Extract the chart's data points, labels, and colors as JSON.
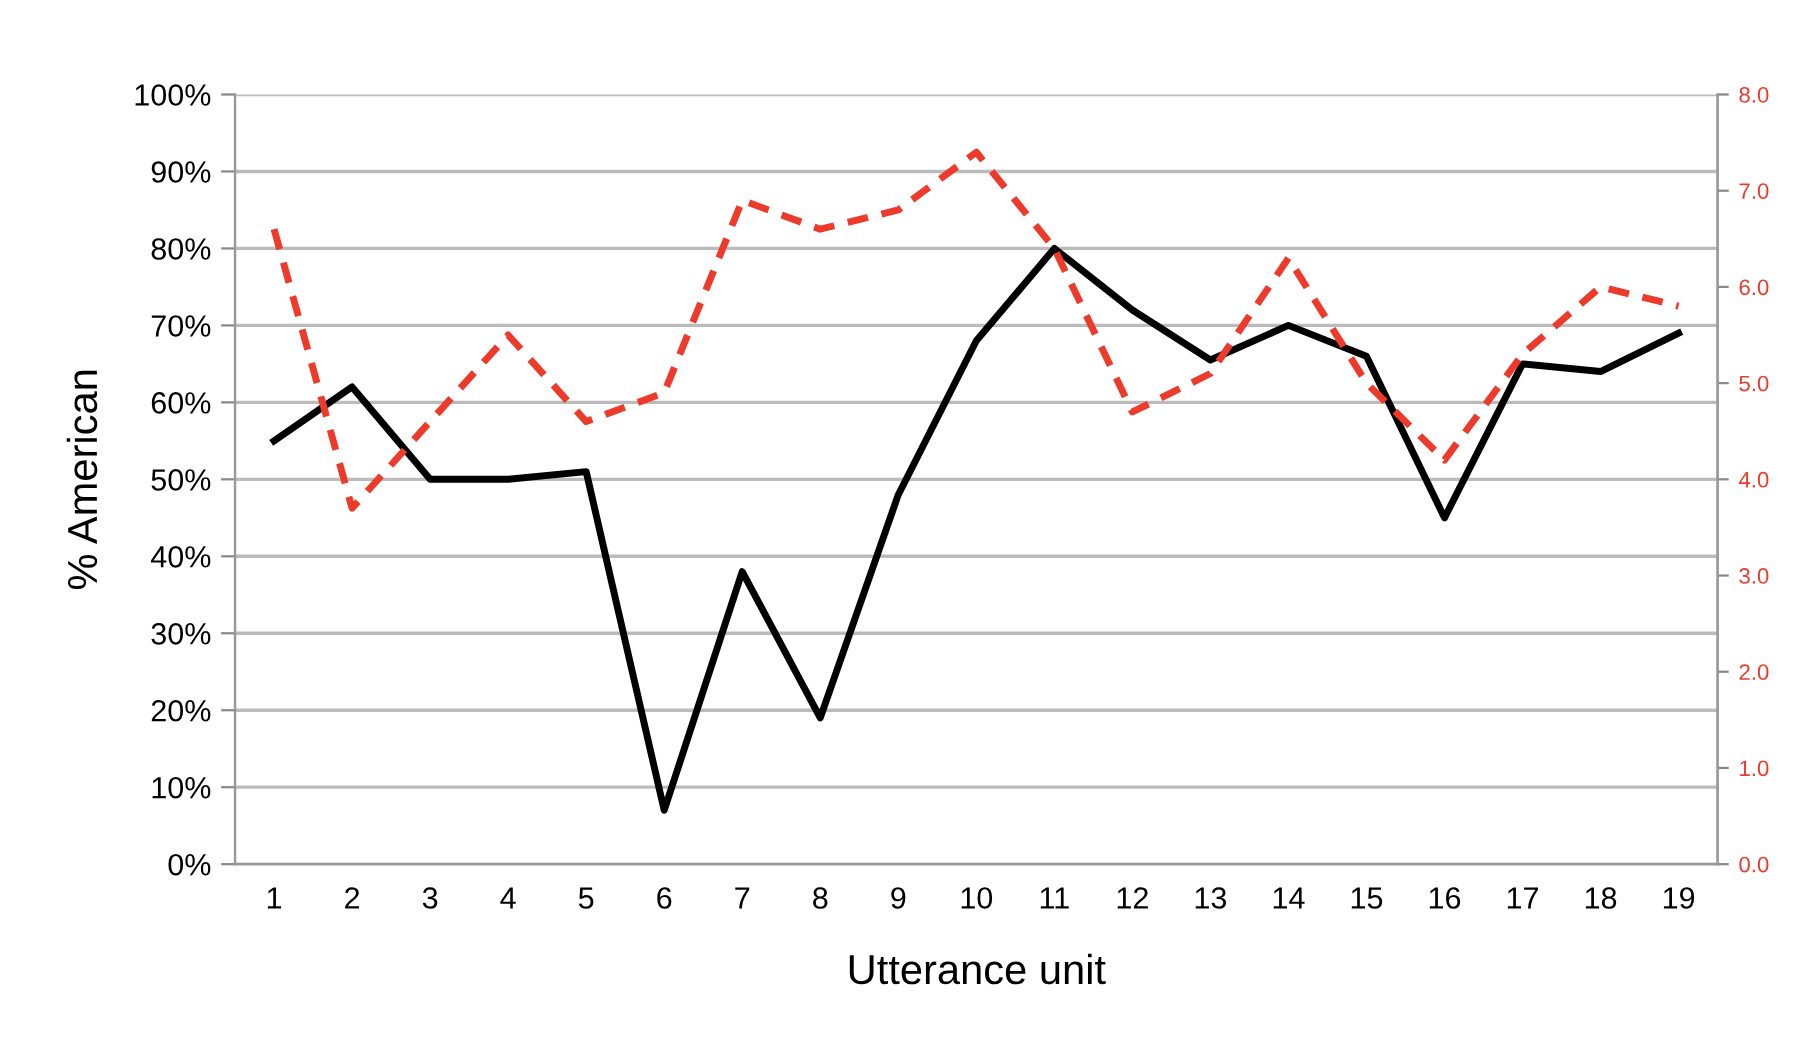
{
  "chart_data": {
    "type": "line",
    "xlabel": "Utterance unit",
    "ylabel": "% American",
    "categories": [
      "1",
      "2",
      "3",
      "4",
      "5",
      "6",
      "7",
      "8",
      "9",
      "10",
      "11",
      "12",
      "13",
      "14",
      "15",
      "16",
      "17",
      "18",
      "19"
    ],
    "series": [
      {
        "color": "#000000",
        "line_style": "solid",
        "values": [
          55,
          62,
          50,
          50,
          51,
          7,
          38,
          19,
          48,
          68,
          80,
          72,
          65.5,
          70,
          66,
          45,
          65,
          64,
          69
        ]
      },
      {
        "color": "#ee3a2a",
        "line_style": "dashed",
        "axis": "y2",
        "values": [
          6.6,
          3.7,
          4.6,
          5.5,
          4.6,
          4.9,
          6.9,
          6.6,
          6.8,
          7.4,
          6.4,
          4.7,
          5.1,
          6.3,
          5.0,
          4.2,
          5.3,
          6.0,
          5.8
        ]
      }
    ],
    "ylim": [
      0,
      100
    ],
    "yticks": [
      {
        "value": 0,
        "label": "0%"
      },
      {
        "value": 10,
        "label": "10%"
      },
      {
        "value": 20,
        "label": "20%"
      },
      {
        "value": 30,
        "label": "30%"
      },
      {
        "value": 40,
        "label": "40%"
      },
      {
        "value": 50,
        "label": "50%"
      },
      {
        "value": 60,
        "label": "60%"
      },
      {
        "value": 70,
        "label": "70%"
      },
      {
        "value": 80,
        "label": "80%"
      },
      {
        "value": 90,
        "label": "90%"
      },
      {
        "value": 100,
        "label": "100%"
      }
    ],
    "y2lim": [
      0,
      8
    ],
    "y2ticks": [
      {
        "value": 0,
        "label": "0.0"
      },
      {
        "value": 1,
        "label": "1.0"
      },
      {
        "value": 2,
        "label": "2.0"
      },
      {
        "value": 3,
        "label": "3.0"
      },
      {
        "value": 4,
        "label": "4.0"
      },
      {
        "value": 5,
        "label": "5.0"
      },
      {
        "value": 6,
        "label": "6.0"
      },
      {
        "value": 7,
        "label": "7.0"
      },
      {
        "value": 8,
        "label": "8.0"
      }
    ],
    "grid": "y",
    "marker": "none",
    "legend": false
  }
}
